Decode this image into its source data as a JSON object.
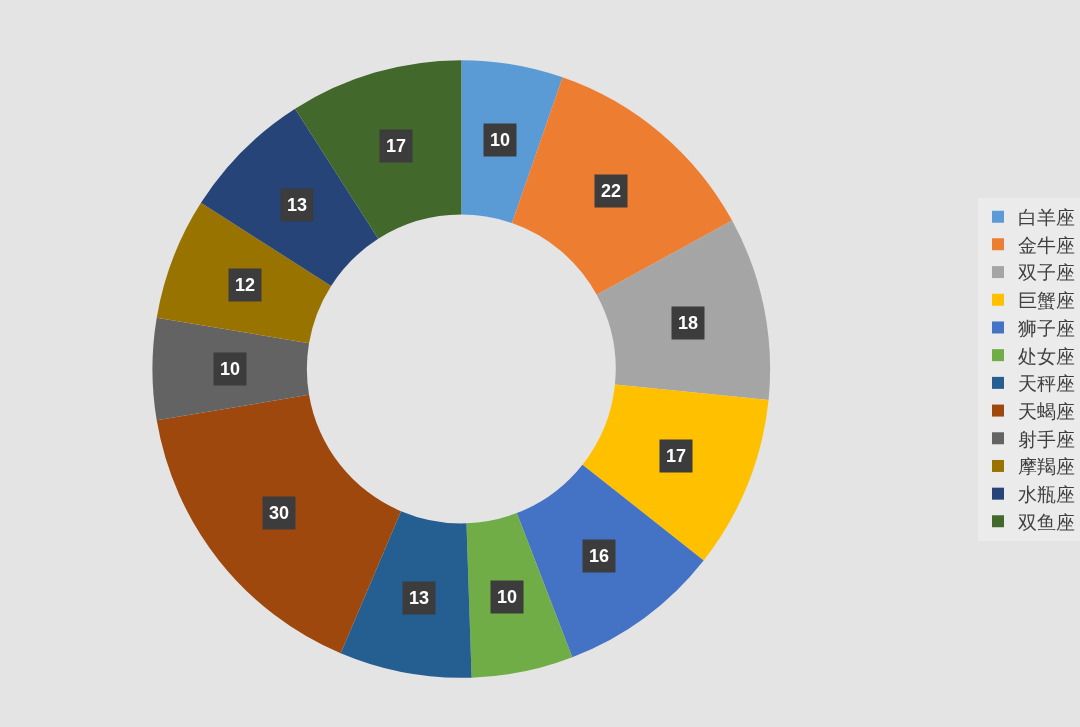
{
  "chart_data": {
    "type": "donut",
    "categories": [
      "白羊座",
      "金牛座",
      "双子座",
      "巨蟹座",
      "狮子座",
      "处女座",
      "天秤座",
      "天蝎座",
      "射手座",
      "摩羯座",
      "水瓶座",
      "双鱼座"
    ],
    "values": [
      10,
      22,
      18,
      17,
      16,
      10,
      13,
      30,
      10,
      12,
      13,
      17
    ],
    "colors": [
      "#5b9bd5",
      "#ed7d31",
      "#a5a5a5",
      "#ffc000",
      "#4472c4",
      "#70ad47",
      "#255e91",
      "#9e480e",
      "#636363",
      "#997300",
      "#264478",
      "#43682b"
    ],
    "data_labels": true,
    "legend": "right"
  }
}
